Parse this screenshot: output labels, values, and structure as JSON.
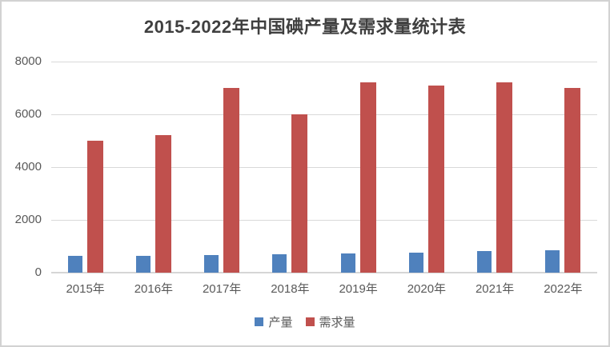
{
  "chart_data": {
    "type": "bar",
    "title": "2015-2022年中国碘产量及需求量统计表",
    "categories": [
      "2015年",
      "2016年",
      "2017年",
      "2018年",
      "2019年",
      "2020年",
      "2021年",
      "2022年"
    ],
    "series": [
      {
        "id": "production",
        "name": "产量",
        "color": "#4F81BD",
        "values": [
          640,
          650,
          680,
          700,
          720,
          760,
          810,
          860
        ]
      },
      {
        "id": "demand",
        "name": "需求量",
        "color": "#C0504D",
        "values": [
          5000,
          5200,
          7000,
          6000,
          7200,
          7100,
          7200,
          7000
        ]
      }
    ],
    "xlabel": "",
    "ylabel": "",
    "ylim": [
      0,
      8000
    ],
    "yticks": [
      0,
      2000,
      4000,
      6000,
      8000
    ],
    "grid": true,
    "legend_position": "bottom"
  },
  "colors": {
    "production": "#4F81BD",
    "demand": "#C0504D",
    "gridline": "#D9D9D9",
    "axis_text": "#595959",
    "title_text": "#3F3F3F",
    "frame_border": "#D2D2D2",
    "background": "#FFFFFF"
  }
}
